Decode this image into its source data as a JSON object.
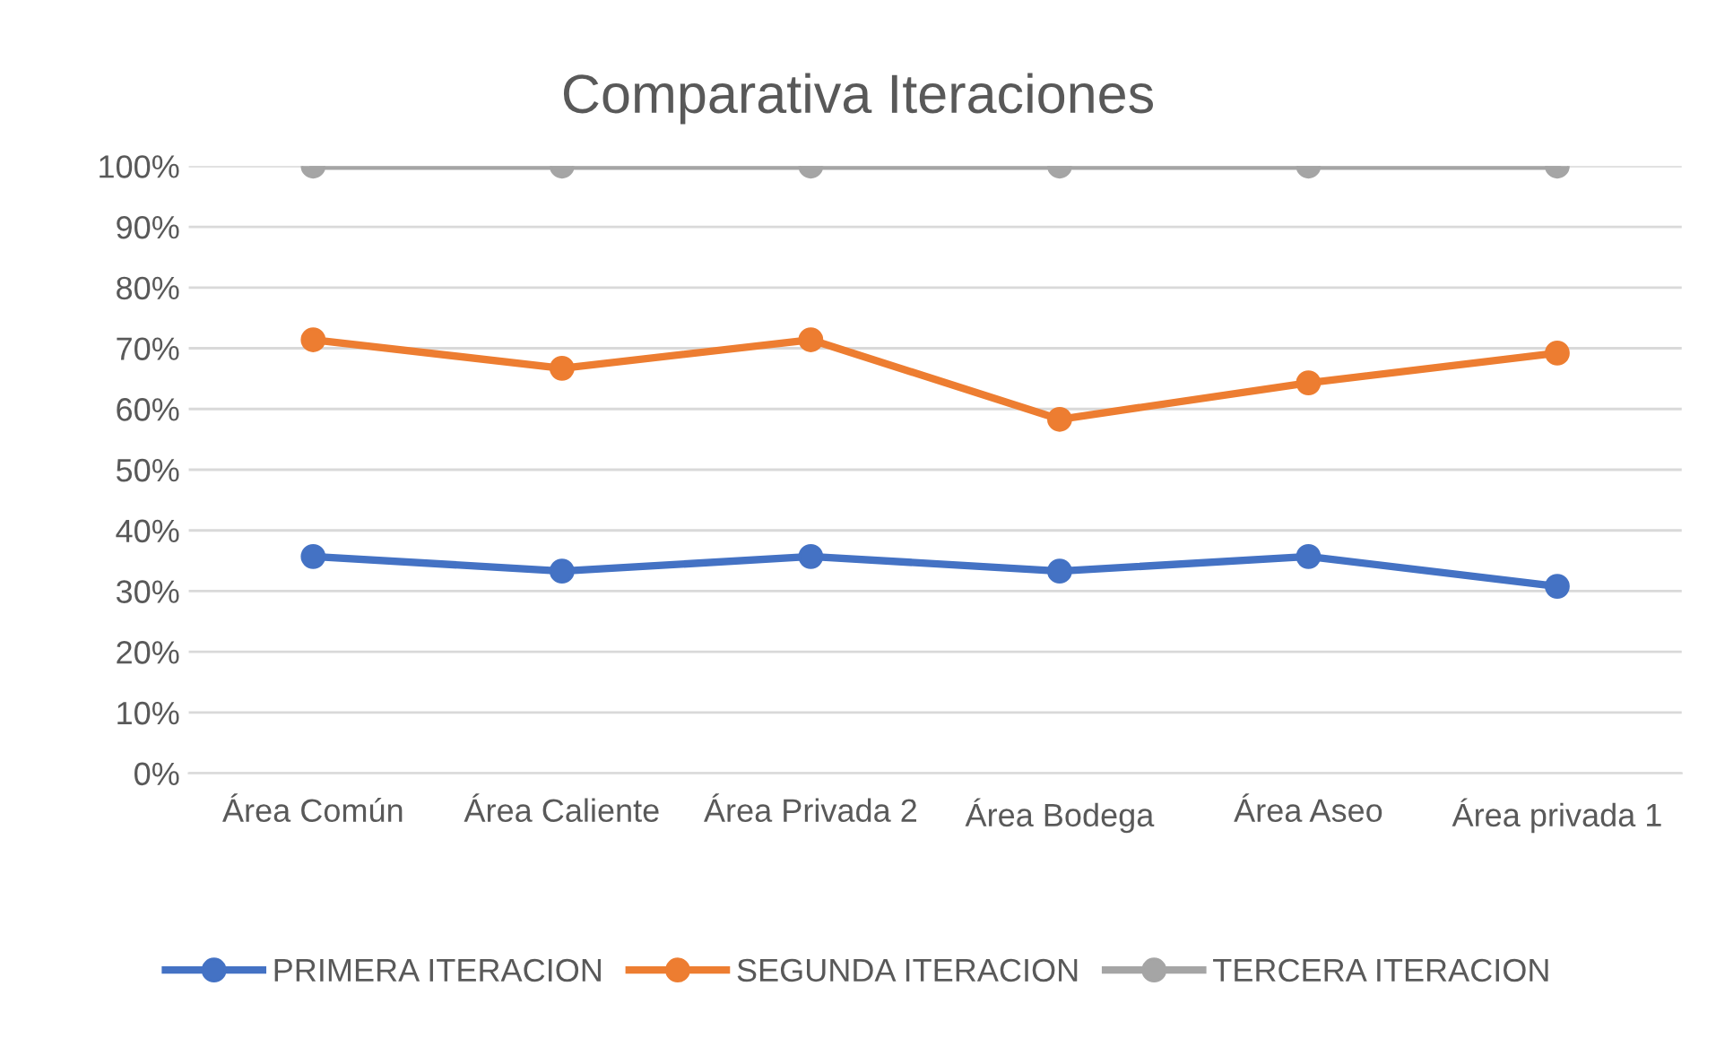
{
  "chart_data": {
    "type": "line",
    "title": "Comparativa Iteraciones",
    "categories": [
      "Área Común",
      "Área Caliente",
      "Área Privada 2",
      "Área Bodega",
      "Área Aseo",
      "Área privada 1"
    ],
    "series": [
      {
        "name": "PRIMERA ITERACION",
        "color": "#4472c4",
        "values": [
          35.7,
          33.3,
          35.7,
          33.3,
          35.7,
          30.8
        ]
      },
      {
        "name": "SEGUNDA ITERACION",
        "color": "#ed7d31",
        "values": [
          71.4,
          66.7,
          71.4,
          58.3,
          64.3,
          69.2
        ]
      },
      {
        "name": "TERCERA ITERACION",
        "color": "#a5a5a5",
        "values": [
          100,
          100,
          100,
          100,
          100,
          100
        ]
      }
    ],
    "ylim": [
      0,
      100
    ],
    "yticks": [
      {
        "value": 0,
        "label": "0%"
      },
      {
        "value": 10,
        "label": "10%"
      },
      {
        "value": 20,
        "label": "20%"
      },
      {
        "value": 30,
        "label": "30%"
      },
      {
        "value": 40,
        "label": "40%"
      },
      {
        "value": 50,
        "label": "50%"
      },
      {
        "value": 60,
        "label": "60%"
      },
      {
        "value": 70,
        "label": "70%"
      },
      {
        "value": 80,
        "label": "80%"
      },
      {
        "value": 90,
        "label": "90%"
      },
      {
        "value": 100,
        "label": "100%"
      }
    ],
    "grid": "y",
    "legend": "bottom",
    "marker": "circle",
    "line_style": "solid"
  }
}
